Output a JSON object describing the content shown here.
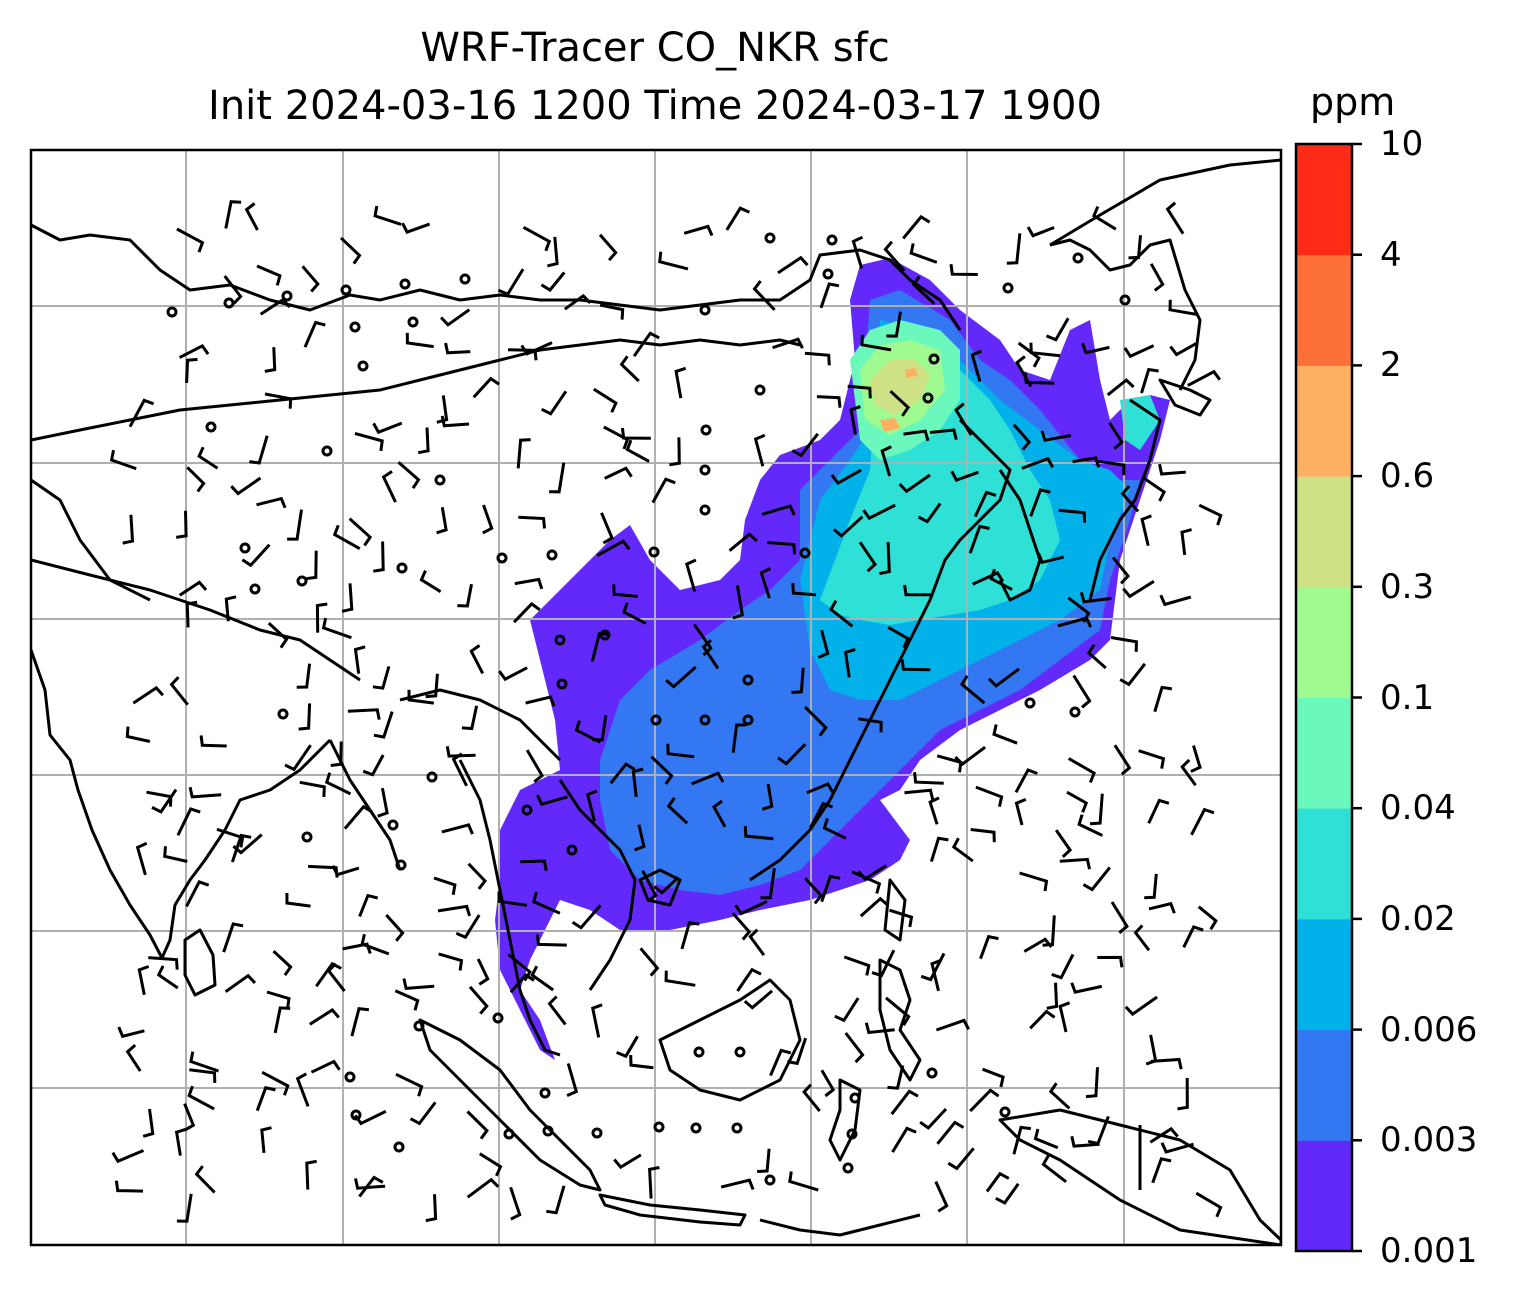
{
  "title_line1": "WRF-Tracer CO_NKR sfc",
  "title_line2": "Init 2024-03-16 1200 Time 2024-03-17 1900",
  "colorbar": {
    "unit": "ppm",
    "levels": [
      "0.001",
      "0.003",
      "0.006",
      "0.02",
      "0.04",
      "0.1",
      "0.3",
      "0.6",
      "2",
      "4",
      "10"
    ],
    "colors": [
      "#6329fb",
      "#3377f2",
      "#02b1e9",
      "#2fe0d6",
      "#6af8bd",
      "#9ffb8f",
      "#cfe187",
      "#fdb061",
      "#fe7039",
      "#fe2b16"
    ]
  },
  "map": {
    "gridlines": true,
    "coastlines": true,
    "country_borders": true,
    "wind_barbs": true,
    "plume_colors": {
      "lowest": "#6329fb",
      "low": "#3377f2",
      "mid": "#02b1e9",
      "mid_high": "#2fe0d6",
      "high": "#6af8bd",
      "higher": "#9ffb8f",
      "peak": "#cfe187",
      "hotspot": "#fdb061"
    }
  }
}
